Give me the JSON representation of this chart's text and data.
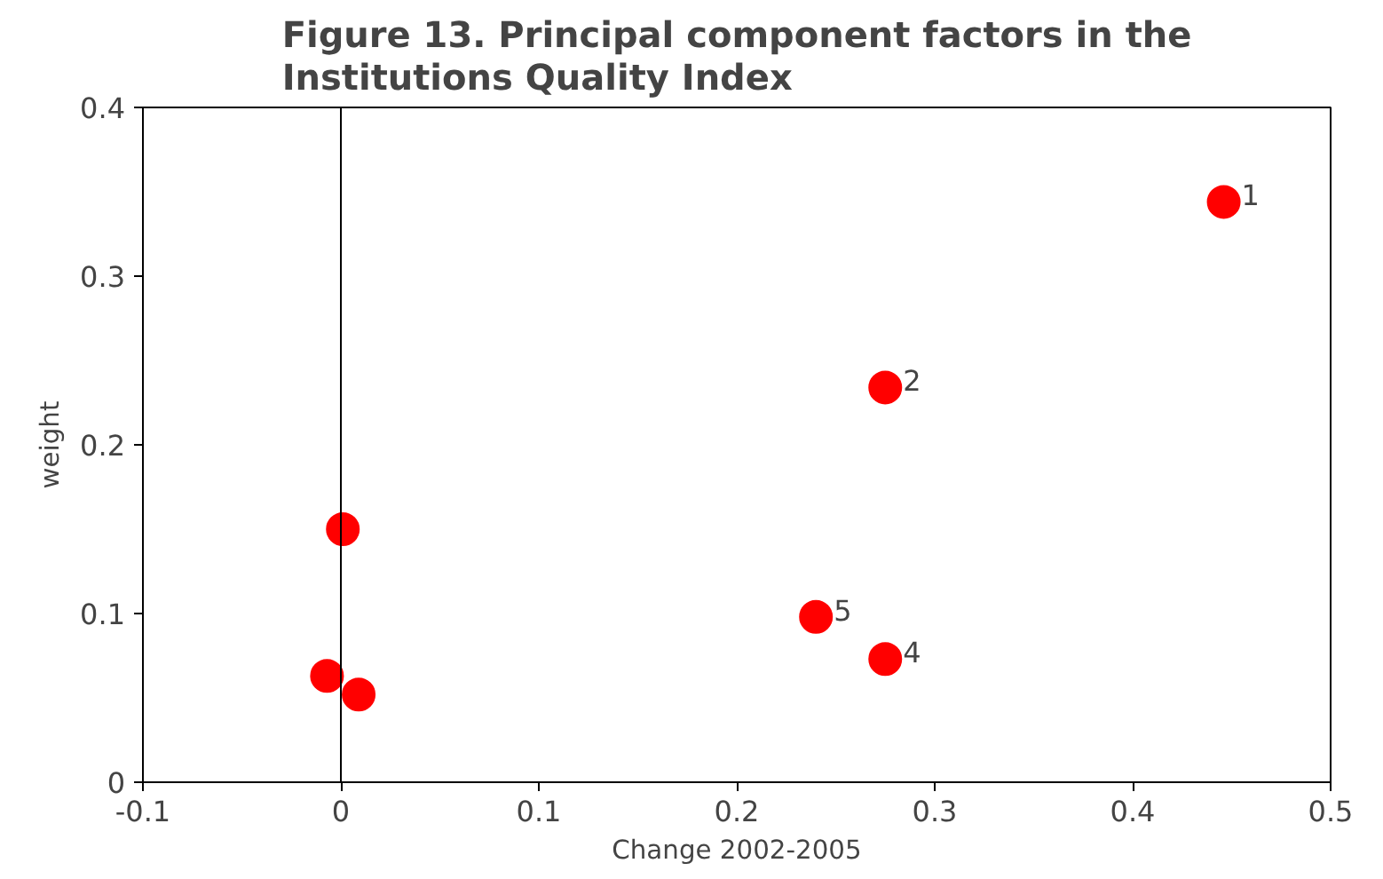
{
  "chart_data": {
    "type": "scatter",
    "title": "Figure 13. Principal component factors in the\nInstitutions Quality Index",
    "xlabel": "Change 2002-2005",
    "ylabel": "weight",
    "x": [
      0.446,
      0.275,
      0.001,
      0.24,
      0.275,
      -0.007,
      0.009
    ],
    "series": [
      {
        "color": "#ff0000",
        "values": [
          0.344,
          0.234,
          0.15,
          0.098,
          0.073,
          0.063,
          0.052
        ]
      }
    ],
    "marker": "circle",
    "xlim": [
      -0.1,
      0.5
    ],
    "ylim": [
      0,
      0.4
    ],
    "xticks": [
      -0.1,
      0,
      0.1,
      0.2,
      0.3,
      0.4,
      0.5
    ],
    "yticks": [
      0,
      0.1,
      0.2,
      0.3,
      0.4
    ],
    "ref_lines": [
      {
        "axis": "x",
        "value": 0,
        "color": "#000000"
      }
    ],
    "annotations": [
      {
        "text": "1",
        "x": 0.446,
        "y": 0.344
      },
      {
        "text": "2",
        "x": 0.275,
        "y": 0.234
      },
      {
        "text": "5",
        "x": 0.24,
        "y": 0.098
      },
      {
        "text": "4",
        "x": 0.275,
        "y": 0.073
      }
    ]
  }
}
